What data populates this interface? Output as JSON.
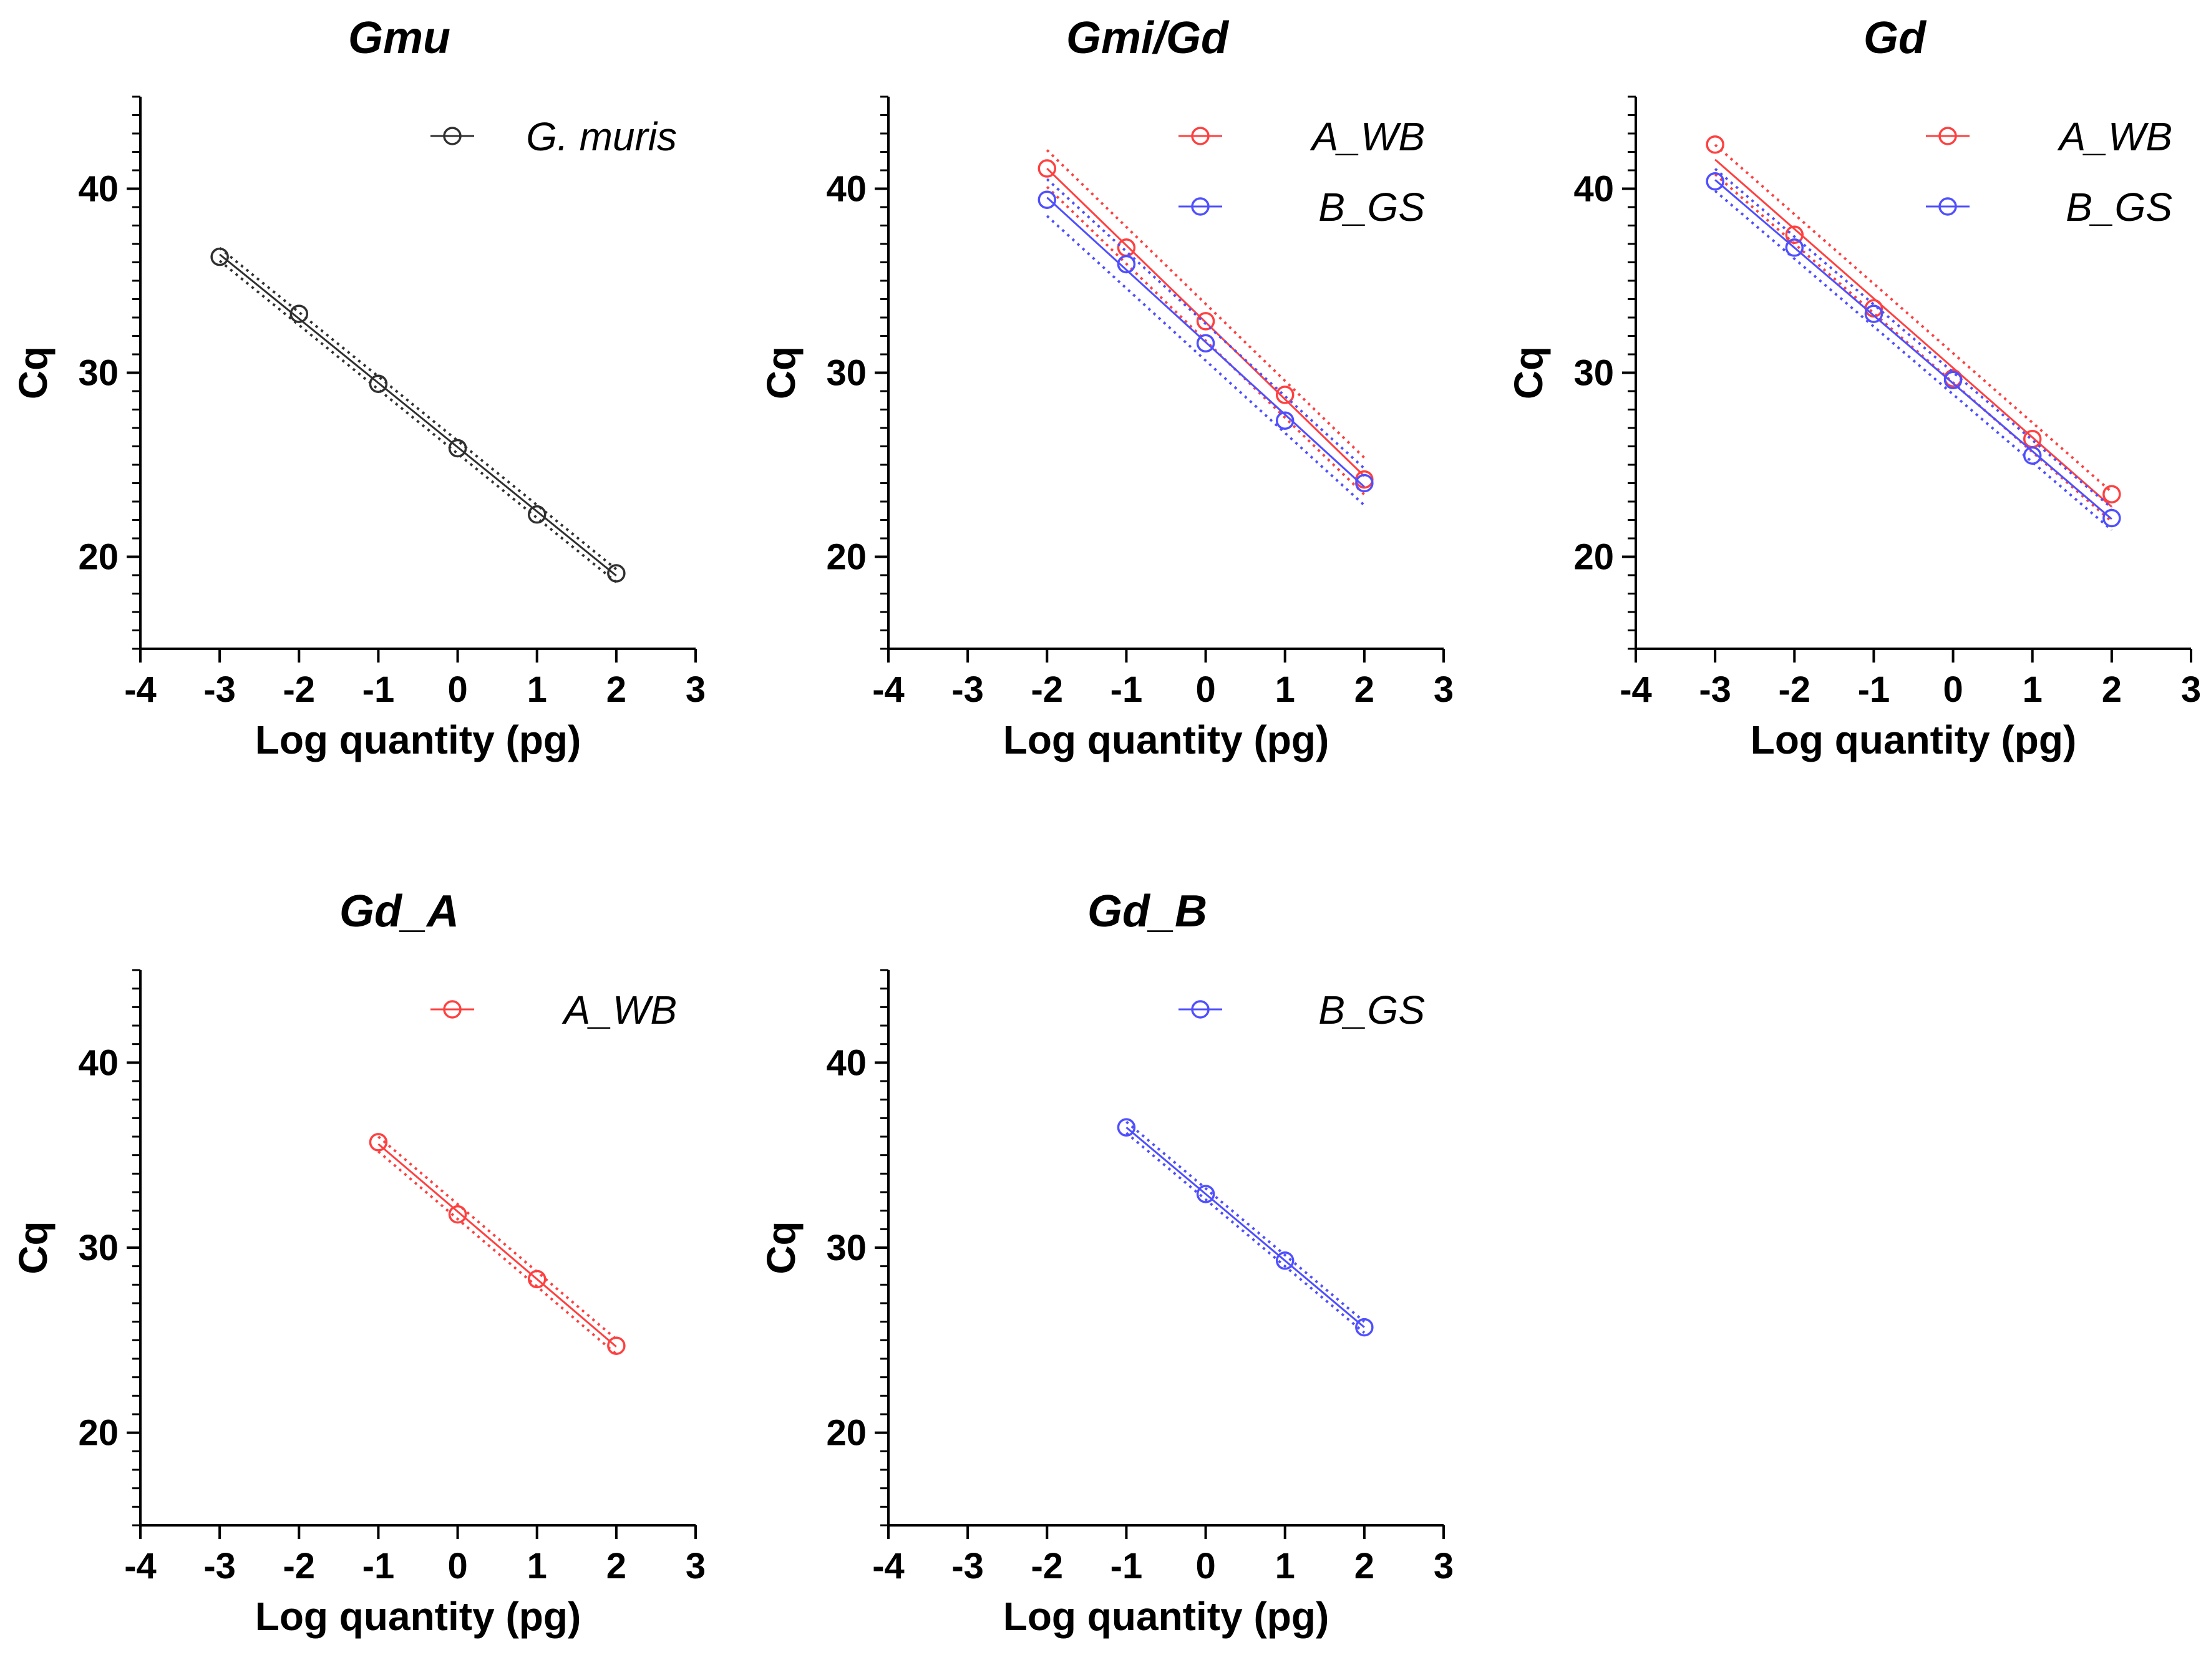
{
  "colors": {
    "G_muris": "#303030",
    "A_WB": "#ff4040",
    "B_GS": "#4f4fff"
  },
  "chart_data": [
    {
      "type": "scatter",
      "title": "Gmu",
      "xlabel": "Log quantity (pg)",
      "ylabel": "Cq",
      "xlim": [
        -4,
        3
      ],
      "ylim": [
        15,
        45
      ],
      "xticks": [
        -4,
        -3,
        -2,
        -1,
        0,
        1,
        2,
        3
      ],
      "yticks": [
        20,
        30,
        40
      ],
      "legend_position": "top-right",
      "series": [
        {
          "name": "G. muris",
          "color": "G_muris",
          "x": [
            -3,
            -2,
            -1,
            0,
            1,
            2
          ],
          "y": [
            36.3,
            33.2,
            29.4,
            25.9,
            22.3,
            19.1
          ],
          "ci_offset": 0.35
        }
      ]
    },
    {
      "type": "scatter",
      "title": "Gmi/Gd",
      "xlabel": "Log quantity (pg)",
      "ylabel": "Cq",
      "xlim": [
        -4,
        3
      ],
      "ylim": [
        15,
        45
      ],
      "xticks": [
        -4,
        -3,
        -2,
        -1,
        0,
        1,
        2,
        3
      ],
      "yticks": [
        20,
        30,
        40
      ],
      "legend_position": "top-right",
      "series": [
        {
          "name": "A_WB",
          "color": "A_WB",
          "x": [
            -2,
            -1,
            0,
            1,
            2
          ],
          "y": [
            41.1,
            36.8,
            32.8,
            28.8,
            24.2
          ],
          "ci_offset": 1.0
        },
        {
          "name": "B_GS",
          "color": "B_GS",
          "x": [
            -2,
            -1,
            0,
            1,
            2
          ],
          "y": [
            39.4,
            35.9,
            31.6,
            27.4,
            24.0
          ],
          "ci_offset": 1.0
        }
      ]
    },
    {
      "type": "scatter",
      "title": "Gd",
      "xlabel": "Log quantity (pg)",
      "ylabel": "Cq",
      "xlim": [
        -4,
        3
      ],
      "ylim": [
        15,
        45
      ],
      "xticks": [
        -4,
        -3,
        -2,
        -1,
        0,
        1,
        2,
        3
      ],
      "yticks": [
        20,
        30,
        40
      ],
      "legend_position": "top-right",
      "series": [
        {
          "name": "A_WB",
          "color": "A_WB",
          "x": [
            -3,
            -2,
            -1,
            0,
            1,
            2
          ],
          "y": [
            42.4,
            37.5,
            33.5,
            29.7,
            26.4,
            23.4
          ],
          "ci_offset": 0.8
        },
        {
          "name": "B_GS",
          "color": "B_GS",
          "x": [
            -3,
            -2,
            -1,
            0,
            1,
            2
          ],
          "y": [
            40.4,
            36.8,
            33.2,
            29.6,
            25.5,
            22.1
          ],
          "ci_offset": 0.6
        }
      ]
    },
    {
      "type": "scatter",
      "title": "Gd_A",
      "xlabel": "Log quantity (pg)",
      "ylabel": "Cq",
      "xlim": [
        -4,
        3
      ],
      "ylim": [
        15,
        45
      ],
      "xticks": [
        -4,
        -3,
        -2,
        -1,
        0,
        1,
        2,
        3
      ],
      "yticks": [
        20,
        30,
        40
      ],
      "legend_position": "top-right",
      "series": [
        {
          "name": "A_WB",
          "color": "A_WB",
          "x": [
            -1,
            0,
            1,
            2
          ],
          "y": [
            35.7,
            31.8,
            28.3,
            24.7
          ],
          "ci_offset": 0.4
        }
      ]
    },
    {
      "type": "scatter",
      "title": "Gd_B",
      "xlabel": "Log quantity (pg)",
      "ylabel": "Cq",
      "xlim": [
        -4,
        3
      ],
      "ylim": [
        15,
        45
      ],
      "xticks": [
        -4,
        -3,
        -2,
        -1,
        0,
        1,
        2,
        3
      ],
      "yticks": [
        20,
        30,
        40
      ],
      "legend_position": "top-right",
      "series": [
        {
          "name": "B_GS",
          "color": "B_GS",
          "x": [
            -1,
            0,
            1,
            2
          ],
          "y": [
            36.5,
            32.9,
            29.3,
            25.7
          ],
          "ci_offset": 0.3
        }
      ]
    }
  ]
}
